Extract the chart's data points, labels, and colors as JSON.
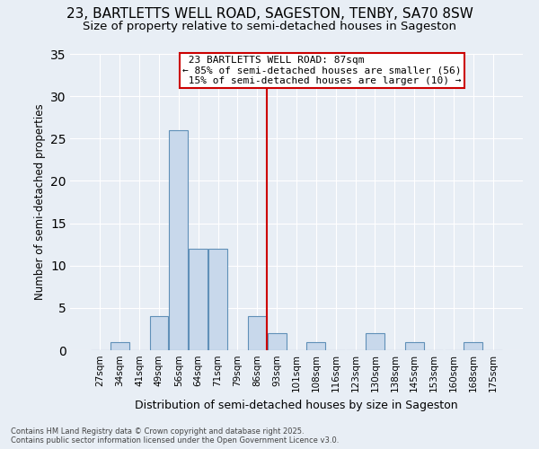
{
  "title": "23, BARTLETTS WELL ROAD, SAGESTON, TENBY, SA70 8SW",
  "subtitle": "Size of property relative to semi-detached houses in Sageston",
  "xlabel": "Distribution of semi-detached houses by size in Sageston",
  "ylabel": "Number of semi-detached properties",
  "footnote": "Contains HM Land Registry data © Crown copyright and database right 2025.\nContains public sector information licensed under the Open Government Licence v3.0.",
  "bins": [
    "27sqm",
    "34sqm",
    "41sqm",
    "49sqm",
    "56sqm",
    "64sqm",
    "71sqm",
    "79sqm",
    "86sqm",
    "93sqm",
    "101sqm",
    "108sqm",
    "116sqm",
    "123sqm",
    "130sqm",
    "138sqm",
    "145sqm",
    "153sqm",
    "160sqm",
    "168sqm",
    "175sqm"
  ],
  "bar_values": [
    0,
    1,
    0,
    4,
    26,
    12,
    12,
    0,
    4,
    2,
    0,
    1,
    0,
    0,
    2,
    0,
    1,
    0,
    0,
    1,
    0
  ],
  "bar_color": "#c8d8eb",
  "bar_edge_color": "#6090b8",
  "ref_bin_index": 8,
  "reference_line_label": "23 BARTLETTS WELL ROAD: 87sqm",
  "pct_smaller": 85,
  "n_smaller": 56,
  "pct_larger": 15,
  "n_larger": 10,
  "ylim": [
    0,
    35
  ],
  "yticks": [
    0,
    5,
    10,
    15,
    20,
    25,
    30,
    35
  ],
  "bg_color": "#e8eef5",
  "plot_bg_color": "#e8eef5",
  "grid_color": "#ffffff",
  "annotation_box_color": "#cc0000",
  "title_fontsize": 11,
  "subtitle_fontsize": 9.5
}
